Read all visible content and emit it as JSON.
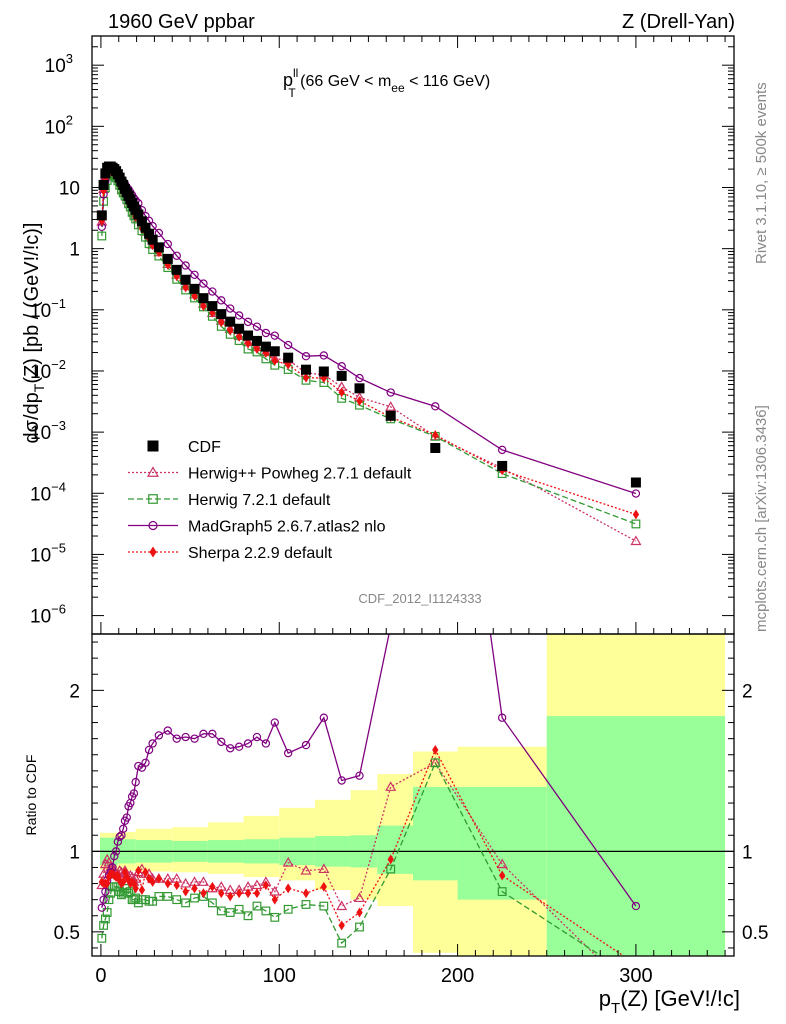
{
  "colors": {
    "cdf": "#000000",
    "herwigpp": "#cc3366",
    "herwig7": "#339933",
    "madgraph": "#800080",
    "sherpa": "#ee1111",
    "band_inner": "#99ff99",
    "band_outer": "#ffff99",
    "watermark": "#888888"
  },
  "chart_data": {
    "type": "scatter",
    "title_left": "1960 GeV ppbar",
    "title_right": "Z (Drell-Yan)",
    "plot_label": {
      "main": "p",
      "sup": "ll",
      "sub": "T",
      "rest_a": " (66 GeV < m",
      "sub2": "ee",
      "rest_b": " < 116 GeV)"
    },
    "ylabel_main": "dσ/dp_T(Z) [pb / (GeV!/!c)]",
    "ylabel_ratio": "Ratio to CDF",
    "xlabel": "p_T(Z) [GeV!/!c]",
    "analysis_id": "CDF_2012_I1124333",
    "watermark_rivet": "Rivet 3.1.10, ≥ 500k events",
    "watermark_mcplots": "mcplots.cern.ch [arXiv:1306.3436]",
    "xlim": [
      -5,
      355
    ],
    "ylim_main": [
      5e-07,
      3000
    ],
    "ylim_ratio": [
      0.35,
      2.35
    ],
    "x_ticks": [
      0,
      100,
      200,
      300
    ],
    "main_ticks": [
      {
        "v": 1e-06,
        "m": "10",
        "e": "−6"
      },
      {
        "v": 1e-05,
        "m": "10",
        "e": "−5"
      },
      {
        "v": 0.0001,
        "m": "10",
        "e": "−4"
      },
      {
        "v": 0.001,
        "m": "10",
        "e": "−3"
      },
      {
        "v": 0.01,
        "m": "10",
        "e": "−2"
      },
      {
        "v": 0.1,
        "m": "10",
        "e": "−1"
      },
      {
        "v": 1,
        "m": "1",
        "e": ""
      },
      {
        "v": 10,
        "m": "10",
        "e": ""
      },
      {
        "v": 100,
        "m": "10",
        "e": "2"
      },
      {
        "v": 1000,
        "m": "10",
        "e": "3"
      }
    ],
    "ratio_ticks": [
      {
        "v": 0.5,
        "l": "0.5"
      },
      {
        "v": 1,
        "l": "1"
      },
      {
        "v": 2,
        "l": "2"
      }
    ],
    "legend": [
      {
        "key": "cdf",
        "label": "CDF"
      },
      {
        "key": "herwigpp",
        "label": "Herwig++ Powheg 2.7.1 default"
      },
      {
        "key": "herwig7",
        "label": "Herwig 7.2.1 default"
      },
      {
        "key": "madgraph",
        "label": "MadGraph5 2.6.7.atlas2 nlo"
      },
      {
        "key": "sherpa",
        "label": "Sherpa 2.2.9 default"
      }
    ],
    "x": [
      0.5,
      1.5,
      2.5,
      3.5,
      4.5,
      5.5,
      6.5,
      7.5,
      8.5,
      9.5,
      10.5,
      11.5,
      12.5,
      13.5,
      14.5,
      15.5,
      16.5,
      17.5,
      18.5,
      19.5,
      21,
      23,
      25,
      27,
      29,
      32.5,
      37.5,
      42.5,
      47.5,
      52.5,
      57.5,
      62.5,
      67.5,
      72.5,
      77.5,
      82.5,
      87.5,
      92.5,
      97.5,
      105,
      115,
      125,
      135,
      145,
      162.5,
      187.5,
      225,
      300
    ],
    "series": [
      {
        "key": "cdf",
        "name": "CDF",
        "values": [
          3.5,
          11,
          17,
          21,
          22,
          22,
          21,
          20,
          18.5,
          16.5,
          14.5,
          12.5,
          11,
          9.5,
          8.3,
          7.3,
          6.4,
          5.6,
          4.9,
          4.3,
          3.6,
          2.8,
          2.2,
          1.75,
          1.4,
          1.05,
          0.68,
          0.45,
          0.31,
          0.22,
          0.155,
          0.115,
          0.085,
          0.064,
          0.049,
          0.038,
          0.031,
          0.025,
          0.021,
          0.0165,
          0.0105,
          0.0098,
          0.0083,
          0.0052,
          0.00185,
          0.00055,
          0.00028,
          0.00015
        ]
      },
      {
        "key": "herwigpp",
        "name": "Herwig++ Powheg 2.7.1 default",
        "ratio": [
          0.79,
          0.86,
          0.92,
          0.95,
          0.93,
          0.9,
          0.89,
          0.88,
          0.86,
          0.86,
          0.88,
          0.87,
          0.84,
          0.88,
          0.84,
          0.84,
          0.85,
          0.84,
          0.81,
          0.83,
          0.87,
          0.89,
          0.86,
          0.86,
          0.83,
          0.83,
          0.83,
          0.83,
          0.8,
          0.81,
          0.81,
          0.77,
          0.78,
          0.76,
          0.76,
          0.78,
          0.79,
          0.81,
          0.75,
          0.93,
          0.88,
          0.89,
          0.66,
          0.71,
          1.4,
          1.55,
          0.92,
          0.11
        ]
      },
      {
        "key": "herwig7",
        "name": "Herwig 7.2.1 default",
        "ratio": [
          0.46,
          0.54,
          0.58,
          0.62,
          0.7,
          0.74,
          0.78,
          0.78,
          0.78,
          0.78,
          0.75,
          0.73,
          0.74,
          0.77,
          0.77,
          0.74,
          0.75,
          0.7,
          0.7,
          0.71,
          0.68,
          0.7,
          0.7,
          0.69,
          0.69,
          0.72,
          0.72,
          0.7,
          0.68,
          0.71,
          0.72,
          0.68,
          0.63,
          0.62,
          0.64,
          0.6,
          0.66,
          0.63,
          0.59,
          0.64,
          0.67,
          0.66,
          0.43,
          0.53,
          0.89,
          1.55,
          0.75,
          0.21
        ]
      },
      {
        "key": "madgraph",
        "name": "MadGraph5 2.6.7.atlas2 nlo",
        "ratio": [
          0.65,
          0.7,
          0.75,
          0.82,
          0.85,
          0.87,
          0.9,
          0.97,
          1,
          1.06,
          1.09,
          1.1,
          1.14,
          1.19,
          1.21,
          1.28,
          1.3,
          1.34,
          1.36,
          1.43,
          1.53,
          1.52,
          1.55,
          1.63,
          1.67,
          1.72,
          1.75,
          1.7,
          1.71,
          1.7,
          1.73,
          1.73,
          1.68,
          1.64,
          1.65,
          1.67,
          1.71,
          1.67,
          1.8,
          1.61,
          1.66,
          1.83,
          1.44,
          1.47,
          2.4,
          4.8,
          1.83,
          0.66
        ]
      },
      {
        "key": "sherpa",
        "name": "Sherpa 2.2.9 default",
        "ratio": [
          0.81,
          0.8,
          0.8,
          0.8,
          0.84,
          0.86,
          0.86,
          0.85,
          0.84,
          0.85,
          0.82,
          0.8,
          0.81,
          0.87,
          0.84,
          0.82,
          0.8,
          0.81,
          0.8,
          0.77,
          0.88,
          0.76,
          0.87,
          0.83,
          0.81,
          0.83,
          0.8,
          0.79,
          0.75,
          0.77,
          0.74,
          0.78,
          0.74,
          0.72,
          0.74,
          0.74,
          0.74,
          0.79,
          0.7,
          0.77,
          0.74,
          0.78,
          0.54,
          0.62,
          0.95,
          1.63,
          0.85,
          0.3
        ]
      }
    ],
    "error_bands": [
      {
        "x0": -0.5,
        "x1": 9.5,
        "inner": [
          0.915,
          1.085
        ],
        "outer": [
          0.885,
          1.115
        ]
      },
      {
        "x0": 9.5,
        "x1": 19.5,
        "inner": [
          0.925,
          1.075
        ],
        "outer": [
          0.88,
          1.12
        ]
      },
      {
        "x0": 19.5,
        "x1": 40,
        "inner": [
          0.93,
          1.07
        ],
        "outer": [
          0.875,
          1.14
        ]
      },
      {
        "x0": 40,
        "x1": 60,
        "inner": [
          0.935,
          1.065
        ],
        "outer": [
          0.87,
          1.15
        ]
      },
      {
        "x0": 60,
        "x1": 80,
        "inner": [
          0.93,
          1.07
        ],
        "outer": [
          0.86,
          1.18
        ]
      },
      {
        "x0": 80,
        "x1": 100,
        "inner": [
          0.925,
          1.075
        ],
        "outer": [
          0.84,
          1.22
        ]
      },
      {
        "x0": 100,
        "x1": 120,
        "inner": [
          0.915,
          1.085
        ],
        "outer": [
          0.82,
          1.27
        ]
      },
      {
        "x0": 120,
        "x1": 140,
        "inner": [
          0.905,
          1.095
        ],
        "outer": [
          0.76,
          1.32
        ]
      },
      {
        "x0": 140,
        "x1": 155,
        "inner": [
          0.9,
          1.1
        ],
        "outer": [
          0.7,
          1.38
        ]
      },
      {
        "x0": 155,
        "x1": 175,
        "inner": [
          0.86,
          1.16
        ],
        "outer": [
          0.66,
          1.48
        ]
      },
      {
        "x0": 175,
        "x1": 200,
        "inner": [
          0.82,
          1.4
        ],
        "outer": [
          0.37,
          1.62
        ]
      },
      {
        "x0": 200,
        "x1": 250,
        "inner": [
          0.7,
          1.4
        ],
        "outer": [
          0.2,
          1.65
        ]
      },
      {
        "x0": 250,
        "x1": 350,
        "inner": [
          0.2,
          1.84
        ],
        "outer": [
          0.1,
          2.4
        ]
      }
    ]
  }
}
